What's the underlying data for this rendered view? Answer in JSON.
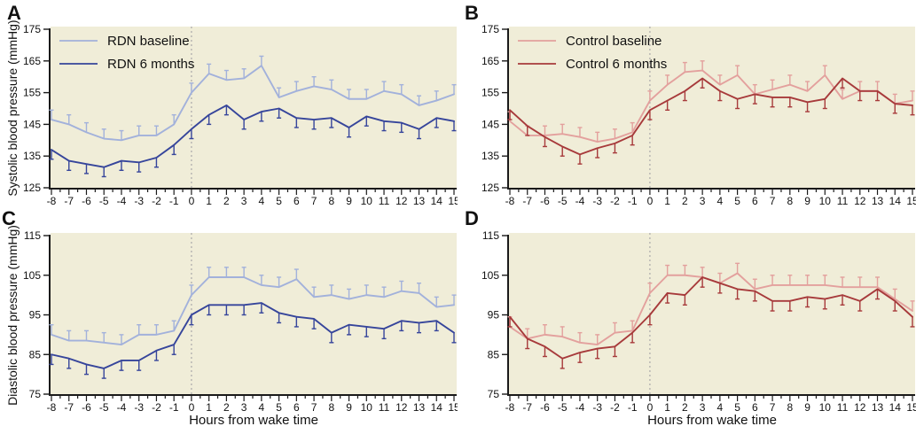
{
  "figure": {
    "xlabel": "Hours from wake time",
    "plot_bg": "#f0edd8",
    "axis_color": "#1a1a1a",
    "text_color": "#111111",
    "wake_line_color": "#a9a9a9"
  },
  "chart_data": [
    {
      "panel_label": "A",
      "type": "line",
      "ylabel": "Systolic blood pressure (mmHg)",
      "xlabel": "",
      "ylim": [
        125,
        175
      ],
      "yticks": [
        125,
        135,
        145,
        155,
        165,
        175
      ],
      "x": [
        -8,
        -7,
        -6,
        -5,
        -4,
        -3,
        -2,
        -1,
        0,
        1,
        2,
        3,
        4,
        5,
        6,
        7,
        8,
        9,
        10,
        11,
        12,
        13,
        14,
        15
      ],
      "wake_marker_x": 0,
      "legend": true,
      "legend_position": "top-left",
      "series": [
        {
          "name": "RDN baseline",
          "color": "#a2b1db",
          "error_mmHg": 3,
          "error_dir": "up",
          "values": [
            146.5,
            145,
            142.5,
            140.5,
            140,
            141.5,
            141.5,
            145,
            155,
            161,
            159,
            159.5,
            163.5,
            153.5,
            155.5,
            157,
            156,
            153,
            153,
            155.5,
            154.5,
            151,
            152.5,
            154.5
          ]
        },
        {
          "name": "RDN 6 months",
          "color": "#36459b",
          "error_mmHg": 3,
          "error_dir": "down",
          "values": [
            137,
            133.5,
            132.5,
            131.5,
            133.5,
            133,
            134.5,
            138.5,
            143.5,
            148,
            151,
            146.5,
            149,
            150,
            147,
            146.5,
            147,
            144,
            147.5,
            146,
            145.5,
            143.5,
            147,
            146
          ]
        }
      ]
    },
    {
      "panel_label": "B",
      "type": "line",
      "ylabel": "",
      "xlabel": "",
      "ylim": [
        125,
        175
      ],
      "yticks": [
        125,
        135,
        145,
        155,
        165,
        175
      ],
      "x": [
        -8,
        -7,
        -6,
        -5,
        -4,
        -3,
        -2,
        -1,
        0,
        1,
        2,
        3,
        4,
        5,
        6,
        7,
        8,
        9,
        10,
        11,
        12,
        13,
        14,
        15
      ],
      "wake_marker_x": 0,
      "legend": true,
      "legend_position": "top-left",
      "series": [
        {
          "name": "Control baseline",
          "color": "#e3a09d",
          "error_mmHg": 3,
          "error_dir": "up",
          "values": [
            146,
            141.5,
            141.5,
            142,
            141,
            139.5,
            140.5,
            142.5,
            152.5,
            157.5,
            161.5,
            162,
            157.5,
            160.5,
            154.5,
            156,
            157.5,
            155.5,
            160.5,
            153,
            155.5,
            155.5,
            151.5,
            152.5
          ]
        },
        {
          "name": "Control 6 months",
          "color": "#a73a3b",
          "error_mmHg": 3,
          "error_dir": "down",
          "values": [
            149.5,
            144.5,
            141,
            138,
            135.5,
            137.5,
            139,
            141.5,
            149.5,
            152.5,
            155.5,
            159.5,
            155.5,
            153,
            154.5,
            153.5,
            153.5,
            152,
            153,
            159.5,
            155.5,
            155.5,
            151.5,
            151
          ]
        }
      ]
    },
    {
      "panel_label": "C",
      "type": "line",
      "ylabel": "Diastolic blood pressure (mmHg)",
      "xlabel": "Hours from wake time",
      "ylim": [
        75,
        115
      ],
      "yticks": [
        75,
        85,
        95,
        105,
        115
      ],
      "x": [
        -8,
        -7,
        -6,
        -5,
        -4,
        -3,
        -2,
        -1,
        0,
        1,
        2,
        3,
        4,
        5,
        6,
        7,
        8,
        9,
        10,
        11,
        12,
        13,
        14,
        15
      ],
      "wake_marker_x": 0,
      "legend": false,
      "series": [
        {
          "name": "RDN baseline",
          "color": "#a2b1db",
          "error_mmHg": 2.5,
          "error_dir": "up",
          "values": [
            90,
            88.5,
            88.5,
            88,
            87.5,
            90,
            90,
            91,
            100,
            104.5,
            104.5,
            104.5,
            102.5,
            102,
            104,
            99.5,
            100,
            99,
            100,
            99.5,
            101,
            100.5,
            97,
            97.5
          ]
        },
        {
          "name": "RDN 6 months",
          "color": "#36459b",
          "error_mmHg": 2.5,
          "error_dir": "down",
          "values": [
            85,
            84,
            82.5,
            81.5,
            83.5,
            83.5,
            86,
            87.5,
            95,
            97.5,
            97.5,
            97.5,
            98,
            95.5,
            94.5,
            94,
            90.5,
            92.5,
            92,
            91.5,
            93.5,
            93,
            93.5,
            90.5
          ]
        }
      ]
    },
    {
      "panel_label": "D",
      "type": "line",
      "ylabel": "",
      "xlabel": "Hours from wake time",
      "ylim": [
        75,
        115
      ],
      "yticks": [
        75,
        85,
        95,
        105,
        115
      ],
      "x": [
        -8,
        -7,
        -6,
        -5,
        -4,
        -3,
        -2,
        -1,
        0,
        1,
        2,
        3,
        4,
        5,
        6,
        7,
        8,
        9,
        10,
        11,
        12,
        13,
        14,
        15
      ],
      "wake_marker_x": 0,
      "legend": false,
      "series": [
        {
          "name": "Control baseline",
          "color": "#e3a09d",
          "error_mmHg": 2.5,
          "error_dir": "up",
          "values": [
            92,
            89,
            90,
            89.5,
            88,
            87.5,
            90.5,
            91,
            100.5,
            105,
            105,
            104.5,
            103,
            105.5,
            101.5,
            102.5,
            102.5,
            102.5,
            102.5,
            102,
            102,
            102,
            99,
            96
          ]
        },
        {
          "name": "Control 6 months",
          "color": "#a73a3b",
          "error_mmHg": 2.5,
          "error_dir": "down",
          "values": [
            94.5,
            89,
            87,
            84,
            85.5,
            86.5,
            87,
            90.5,
            95,
            100.5,
            100,
            104.5,
            103,
            101.5,
            101,
            98.5,
            98.5,
            99.5,
            99,
            100,
            98.5,
            101.5,
            98.5,
            94.5
          ]
        }
      ]
    }
  ]
}
